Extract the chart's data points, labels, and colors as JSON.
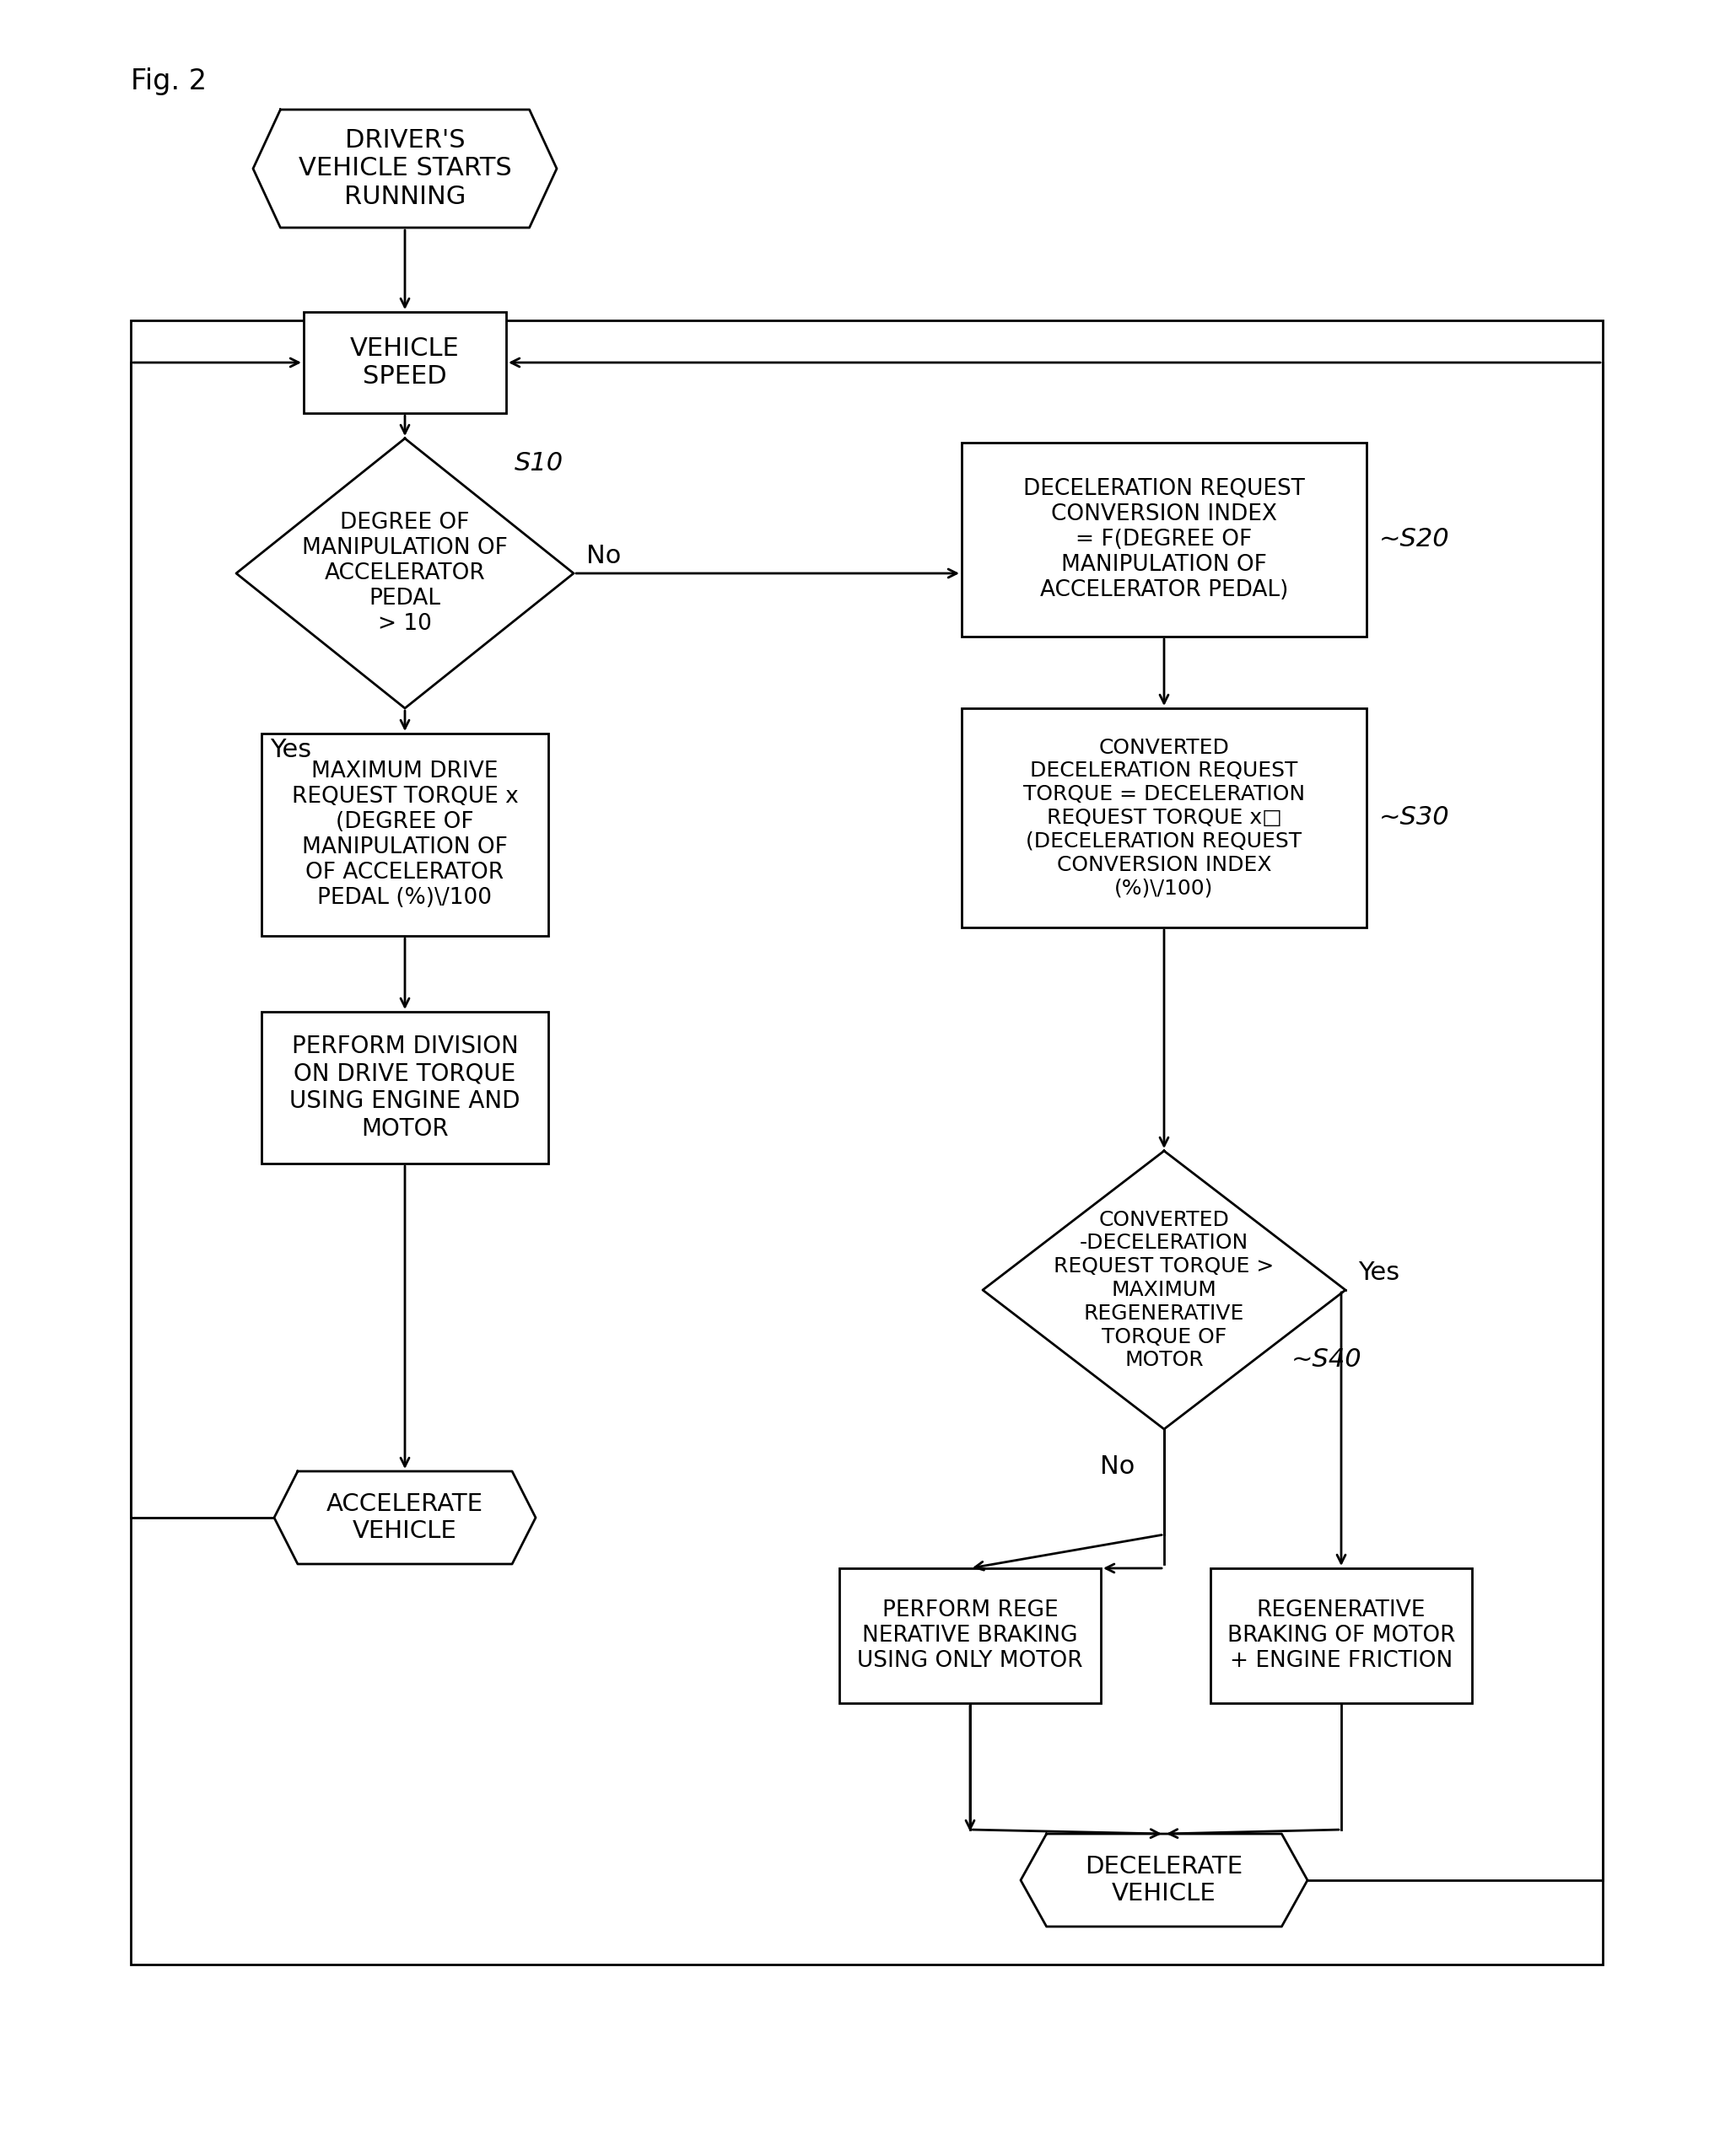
{
  "fig_label": "Fig. 2",
  "bg_color": "#ffffff",
  "lw": 2.0,
  "nodes": {
    "start_hex": {
      "text": "DRIVER'S\nVEHICLE STARTS\nRUNNING"
    },
    "vehicle_speed": {
      "text": "VEHICLE\nSPEED"
    },
    "diamond_s10": {
      "text": "DEGREE OF\nMANIPULATION OF\nACCELERATOR\nPEDAL\n> 10",
      "label": "S10"
    },
    "s20_box": {
      "text": "DECELERATION REQUEST\nCONVERSION INDEX\n= F(DEGREE OF\nMANIPULATION OF\nACCELERATOR PEDAL)",
      "label": "~S20"
    },
    "left_box1": {
      "text": "MAXIMUM DRIVE\nREQUEST TORQUE x\n(DEGREE OF\nMANIPULATION OF\nOF ACCELERATOR\nPEDAL (%)/100)"
    },
    "s30_box": {
      "text": "CONVERTED\nDECELERATION REQUEST\nTORQUE = DECELERATION\nREQUEST TORQUE x□\n(DECELERATION REQUEST\nCONVERSION INDEX\n(%)/100)",
      "label": "~S30"
    },
    "left_box2": {
      "text": "PERFORM DIVISION\nON DRIVE TORQUE\nUSING ENGINE AND\nMOTOR"
    },
    "diamond_s40": {
      "text": "CONVERTED\n-DECELERATION\nREQUEST TORQUE >\nMAXIMUM\nREGENERATIVE\nTORQUE OF\nMOTOR",
      "label": "~S40"
    },
    "accel_hex": {
      "text": "ACCELERATE\nVEHICLE"
    },
    "regen_only": {
      "text": "PERFORM REGE\nNERATIVE BRAKING\nUSING ONLY MOTOR"
    },
    "regen_engine": {
      "text": "REGENERATIVE\nBRAKING OF MOTOR\n+ ENGINE FRICTION"
    },
    "decel_hex": {
      "text": "DECELERATE\nVEHICLE"
    }
  }
}
